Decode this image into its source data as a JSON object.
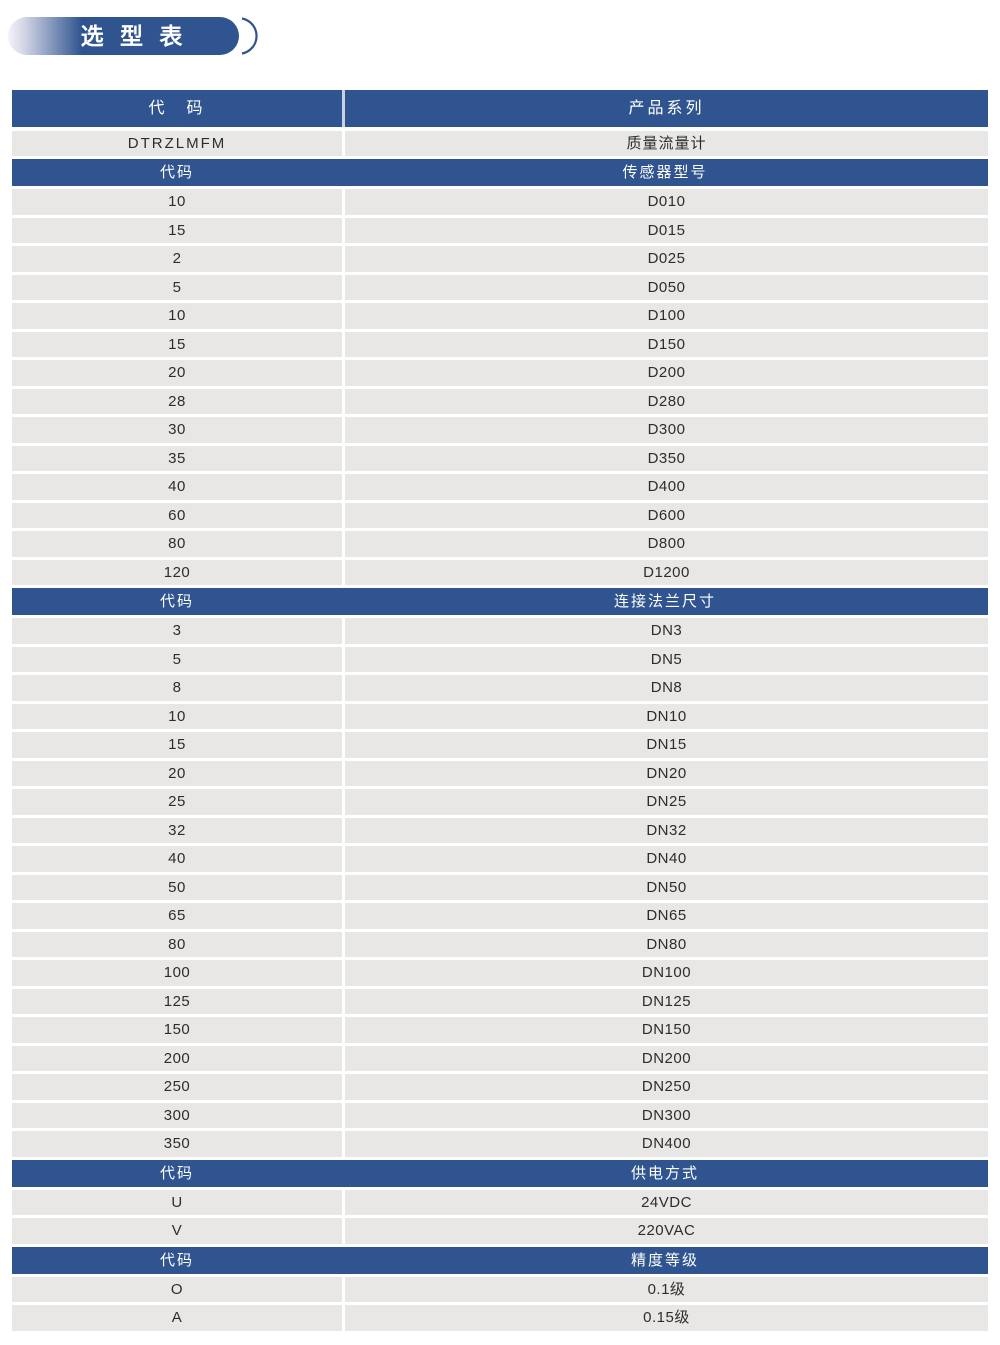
{
  "page": {
    "title": "选 型 表"
  },
  "colors": {
    "header_blue": "#2f548f",
    "row_gray": "#e8e7e5",
    "banner_gradient_start": "#f3f3f8",
    "banner_gradient_end": "#2f548f",
    "text_dark": "#2d2d2d",
    "text_white": "#ffffff"
  },
  "table": {
    "main_header": {
      "code": "代　码",
      "value": "产品系列"
    },
    "product_row": {
      "code": "DTRZLMFM",
      "value": "质量流量计"
    },
    "sections": [
      {
        "header": {
          "code": "代码",
          "value": "传感器型号"
        },
        "rows": [
          {
            "code": "10",
            "value": "D010"
          },
          {
            "code": "15",
            "value": "D015"
          },
          {
            "code": "2",
            "value": "D025"
          },
          {
            "code": "5",
            "value": "D050"
          },
          {
            "code": "10",
            "value": "D100"
          },
          {
            "code": "15",
            "value": "D150"
          },
          {
            "code": "20",
            "value": "D200"
          },
          {
            "code": "28",
            "value": "D280"
          },
          {
            "code": "30",
            "value": "D300"
          },
          {
            "code": "35",
            "value": "D350"
          },
          {
            "code": "40",
            "value": "D400"
          },
          {
            "code": "60",
            "value": "D600"
          },
          {
            "code": "80",
            "value": "D800"
          },
          {
            "code": "120",
            "value": "D1200"
          }
        ]
      },
      {
        "header": {
          "code": "代码",
          "value": "连接法兰尺寸"
        },
        "rows": [
          {
            "code": "3",
            "value": "DN3"
          },
          {
            "code": "5",
            "value": "DN5"
          },
          {
            "code": "8",
            "value": "DN8"
          },
          {
            "code": "10",
            "value": "DN10"
          },
          {
            "code": "15",
            "value": "DN15"
          },
          {
            "code": "20",
            "value": "DN20"
          },
          {
            "code": "25",
            "value": "DN25"
          },
          {
            "code": "32",
            "value": "DN32"
          },
          {
            "code": "40",
            "value": "DN40"
          },
          {
            "code": "50",
            "value": "DN50"
          },
          {
            "code": "65",
            "value": "DN65"
          },
          {
            "code": "80",
            "value": "DN80"
          },
          {
            "code": "100",
            "value": "DN100"
          },
          {
            "code": "125",
            "value": "DN125"
          },
          {
            "code": "150",
            "value": "DN150"
          },
          {
            "code": "200",
            "value": "DN200"
          },
          {
            "code": "250",
            "value": "DN250"
          },
          {
            "code": "300",
            "value": "DN300"
          },
          {
            "code": "350",
            "value": "DN400"
          }
        ]
      },
      {
        "header": {
          "code": "代码",
          "value": "供电方式"
        },
        "rows": [
          {
            "code": "U",
            "value": "24VDC"
          },
          {
            "code": "V",
            "value": "220VAC"
          }
        ]
      },
      {
        "header": {
          "code": "代码",
          "value": "精度等级"
        },
        "rows": [
          {
            "code": "O",
            "value": "0.1级"
          },
          {
            "code": "A",
            "value": "0.15级"
          }
        ]
      }
    ]
  }
}
